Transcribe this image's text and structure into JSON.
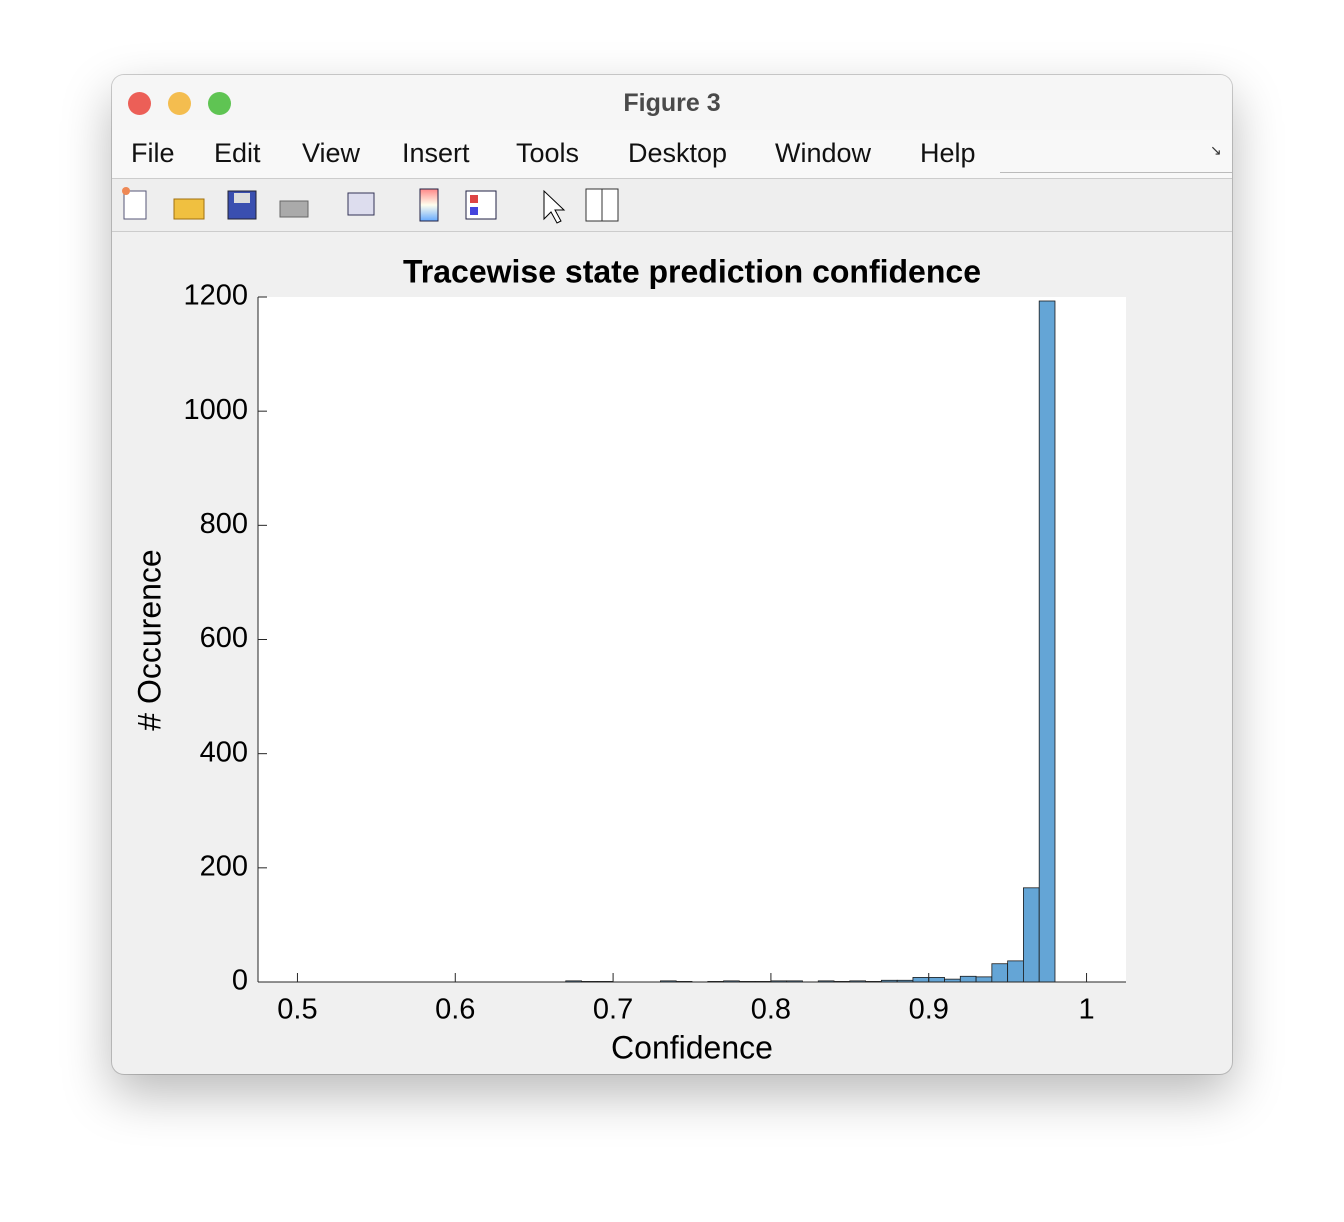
{
  "window": {
    "title": "Figure 3",
    "menu": [
      "File",
      "Edit",
      "View",
      "Insert",
      "Tools",
      "Desktop",
      "Window",
      "Help"
    ]
  },
  "chart_data": {
    "type": "histogram",
    "title": "Tracewise state prediction confidence",
    "x_label": "Confidence",
    "y_label": "# Occurence",
    "bins": [
      0.67,
      0.68,
      0.69,
      0.7,
      0.71,
      0.72,
      0.73,
      0.74,
      0.75,
      0.76,
      0.77,
      0.78,
      0.79,
      0.8,
      0.81,
      0.82,
      0.83,
      0.84,
      0.85,
      0.86,
      0.87,
      0.88,
      0.89,
      0.9,
      0.91,
      0.92,
      0.93,
      0.94,
      0.95,
      0.96,
      0.97,
      0.98
    ],
    "values": [
      2,
      1,
      1,
      0,
      0,
      0,
      2,
      1,
      0,
      1,
      2,
      1,
      1,
      2,
      2,
      0,
      2,
      1,
      2,
      1,
      3,
      3,
      8,
      8,
      5,
      10,
      9,
      32,
      37,
      165,
      1193
    ],
    "color": "#64a5d6",
    "xlim": [
      0.475,
      1.025
    ],
    "xticks": [
      0.5,
      0.6,
      0.7,
      0.8,
      0.9,
      1
    ],
    "ylim": [
      0,
      1200
    ],
    "yticks": [
      0,
      200,
      400,
      600,
      800,
      1000,
      1200
    ]
  }
}
